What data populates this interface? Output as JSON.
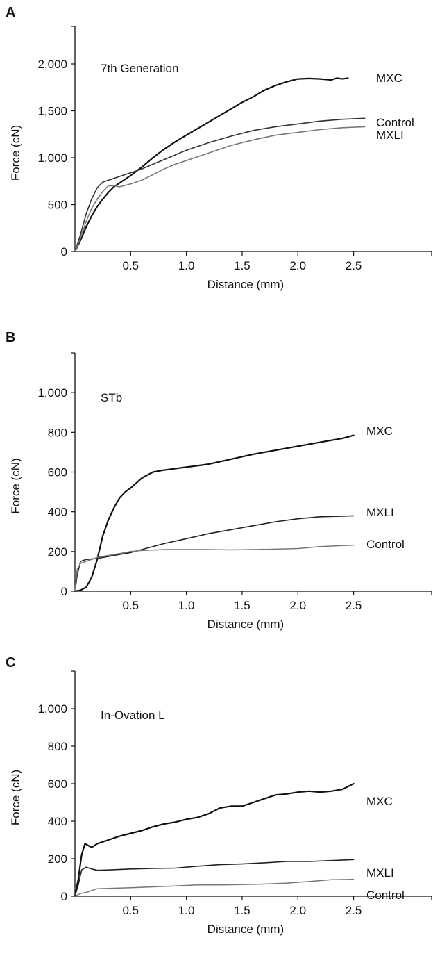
{
  "chart_data": [
    {
      "type": "line",
      "panel_label": "A",
      "annotation": "7th Generation",
      "xlabel": "Distance (mm)",
      "ylabel": "Force (cN)",
      "xlim": [
        0,
        3.2
      ],
      "ylim": [
        0,
        2400
      ],
      "x_ticks": [
        0.5,
        1.0,
        1.5,
        2.0,
        2.5
      ],
      "x_tick_labels": [
        "0.5",
        "1.0",
        "1.5",
        "2.0",
        "2.5"
      ],
      "y_ticks": [
        0,
        500,
        1000,
        1500,
        2000
      ],
      "y_tick_labels": [
        "0",
        "500",
        "1,000",
        "1,500",
        "2,000"
      ],
      "grid": false,
      "series": [
        {
          "name": "MXC",
          "color": "#111111",
          "x": [
            0,
            0.05,
            0.1,
            0.15,
            0.2,
            0.25,
            0.3,
            0.35,
            0.4,
            0.5,
            0.6,
            0.7,
            0.8,
            0.9,
            1.0,
            1.2,
            1.4,
            1.5,
            1.6,
            1.7,
            1.8,
            1.9,
            2.0,
            2.1,
            2.2,
            2.3,
            2.35,
            2.4,
            2.45
          ],
          "y": [
            0,
            120,
            260,
            380,
            480,
            560,
            630,
            690,
            730,
            810,
            900,
            1000,
            1090,
            1170,
            1240,
            1380,
            1520,
            1590,
            1650,
            1720,
            1770,
            1810,
            1840,
            1845,
            1840,
            1830,
            1850,
            1840,
            1850
          ]
        },
        {
          "name": "Control",
          "color": "#333333",
          "x": [
            0,
            0.05,
            0.1,
            0.15,
            0.2,
            0.25,
            0.3,
            0.35,
            0.4,
            0.5,
            0.6,
            0.7,
            0.8,
            0.9,
            1.0,
            1.2,
            1.4,
            1.6,
            1.8,
            2.0,
            2.2,
            2.4,
            2.6
          ],
          "y": [
            0,
            180,
            400,
            560,
            680,
            740,
            760,
            780,
            800,
            840,
            880,
            930,
            980,
            1030,
            1080,
            1160,
            1230,
            1290,
            1330,
            1360,
            1390,
            1410,
            1420
          ]
        },
        {
          "name": "MXLI",
          "color": "#777777",
          "x": [
            0,
            0.05,
            0.1,
            0.15,
            0.2,
            0.25,
            0.3,
            0.35,
            0.4,
            0.5,
            0.6,
            0.7,
            0.8,
            0.9,
            1.0,
            1.2,
            1.4,
            1.6,
            1.8,
            2.0,
            2.2,
            2.4,
            2.6
          ],
          "y": [
            0,
            140,
            320,
            460,
            560,
            640,
            700,
            700,
            690,
            720,
            760,
            820,
            880,
            930,
            970,
            1050,
            1130,
            1190,
            1240,
            1270,
            1300,
            1320,
            1330
          ]
        }
      ]
    },
    {
      "type": "line",
      "panel_label": "B",
      "annotation": "STb",
      "xlabel": "Distance (mm)",
      "ylabel": "Force (cN)",
      "xlim": [
        0,
        3.2
      ],
      "ylim": [
        0,
        1200
      ],
      "x_ticks": [
        0.5,
        1.0,
        1.5,
        2.0,
        2.5
      ],
      "x_tick_labels": [
        "0.5",
        "1.0",
        "1.5",
        "2.0",
        "2.5"
      ],
      "y_ticks": [
        0,
        200,
        400,
        600,
        800,
        1000
      ],
      "y_tick_labels": [
        "0",
        "200",
        "400",
        "600",
        "800",
        "1,000"
      ],
      "grid": false,
      "series": [
        {
          "name": "MXC",
          "color": "#111111",
          "x": [
            0,
            0.05,
            0.1,
            0.15,
            0.2,
            0.25,
            0.3,
            0.35,
            0.4,
            0.45,
            0.5,
            0.6,
            0.7,
            0.8,
            1.0,
            1.2,
            1.4,
            1.6,
            1.8,
            2.0,
            2.2,
            2.4,
            2.5
          ],
          "y": [
            0,
            5,
            20,
            70,
            160,
            280,
            360,
            420,
            470,
            500,
            520,
            570,
            600,
            610,
            625,
            640,
            665,
            690,
            710,
            730,
            750,
            770,
            785
          ]
        },
        {
          "name": "MXLI",
          "color": "#222222",
          "x": [
            0,
            0.02,
            0.05,
            0.1,
            0.2,
            0.3,
            0.4,
            0.5,
            0.6,
            0.8,
            1.0,
            1.2,
            1.4,
            1.6,
            1.8,
            2.0,
            2.2,
            2.4,
            2.5
          ],
          "y": [
            0,
            80,
            150,
            160,
            165,
            175,
            185,
            195,
            210,
            240,
            265,
            290,
            310,
            330,
            350,
            365,
            375,
            378,
            380
          ]
        },
        {
          "name": "Control",
          "color": "#777777",
          "x": [
            0,
            0.02,
            0.05,
            0.1,
            0.2,
            0.3,
            0.4,
            0.5,
            0.6,
            0.8,
            1.0,
            1.2,
            1.4,
            1.6,
            1.8,
            2.0,
            2.2,
            2.4,
            2.5
          ],
          "y": [
            0,
            110,
            140,
            150,
            170,
            180,
            190,
            200,
            205,
            210,
            210,
            210,
            208,
            210,
            212,
            215,
            225,
            230,
            232
          ]
        }
      ]
    },
    {
      "type": "line",
      "panel_label": "C",
      "annotation": "In-Ovation L",
      "xlabel": "Distance (mm)",
      "ylabel": "Force (cN)",
      "xlim": [
        0,
        3.2
      ],
      "ylim": [
        0,
        1200
      ],
      "x_ticks": [
        0.5,
        1.0,
        1.5,
        2.0,
        2.5
      ],
      "x_tick_labels": [
        "0.5",
        "1.0",
        "1.5",
        "2.0",
        "2.5"
      ],
      "y_ticks": [
        0,
        200,
        400,
        600,
        800,
        1000
      ],
      "y_tick_labels": [
        "0",
        "200",
        "400",
        "600",
        "800",
        "1,000"
      ],
      "grid": false,
      "series": [
        {
          "name": "MXC",
          "color": "#111111",
          "x": [
            0,
            0.03,
            0.06,
            0.09,
            0.12,
            0.15,
            0.2,
            0.3,
            0.4,
            0.5,
            0.6,
            0.7,
            0.8,
            0.9,
            1.0,
            1.1,
            1.2,
            1.3,
            1.4,
            1.5,
            1.6,
            1.7,
            1.8,
            1.9,
            2.0,
            2.1,
            2.2,
            2.3,
            2.4,
            2.5
          ],
          "y": [
            0,
            90,
            220,
            280,
            270,
            260,
            280,
            300,
            320,
            335,
            350,
            370,
            385,
            395,
            410,
            420,
            440,
            470,
            480,
            480,
            500,
            520,
            540,
            545,
            555,
            560,
            555,
            560,
            570,
            600
          ]
        },
        {
          "name": "MXLI",
          "color": "#222222",
          "x": [
            0,
            0.03,
            0.06,
            0.1,
            0.15,
            0.2,
            0.3,
            0.5,
            0.7,
            0.9,
            1.1,
            1.3,
            1.5,
            1.7,
            1.9,
            2.1,
            2.3,
            2.5
          ],
          "y": [
            0,
            60,
            140,
            155,
            145,
            138,
            140,
            145,
            148,
            150,
            160,
            168,
            172,
            178,
            185,
            185,
            190,
            195
          ]
        },
        {
          "name": "Control",
          "color": "#777777",
          "x": [
            0,
            0.05,
            0.1,
            0.15,
            0.2,
            0.3,
            0.5,
            0.7,
            0.9,
            1.1,
            1.3,
            1.5,
            1.7,
            1.9,
            2.1,
            2.3,
            2.5
          ],
          "y": [
            0,
            15,
            20,
            30,
            40,
            42,
            45,
            50,
            55,
            60,
            60,
            62,
            65,
            70,
            78,
            88,
            90
          ]
        }
      ]
    }
  ]
}
